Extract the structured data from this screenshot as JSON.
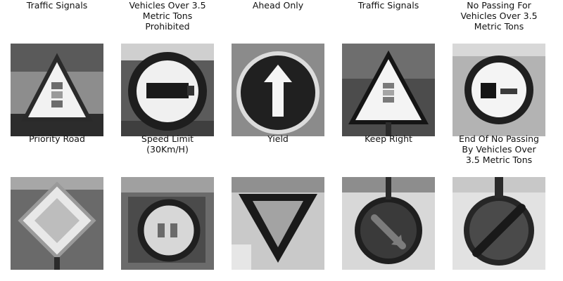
{
  "signs": [
    {
      "label": "Traffic Signals"
    },
    {
      "label": "Vehicles Over 3.5\nMetric Tons\nProhibited"
    },
    {
      "label": "Ahead Only"
    },
    {
      "label": "Traffic Signals"
    },
    {
      "label": "No Passing For\nVehicles Over 3.5\nMetric Tons"
    },
    {
      "label": "Priority Road"
    },
    {
      "label": "Speed Limit\n(30Km/H)"
    },
    {
      "label": "Yield"
    },
    {
      "label": "Keep Right"
    },
    {
      "label": "End Of No Passing\nBy Vehicles Over\n3.5 Metric Tons"
    }
  ]
}
